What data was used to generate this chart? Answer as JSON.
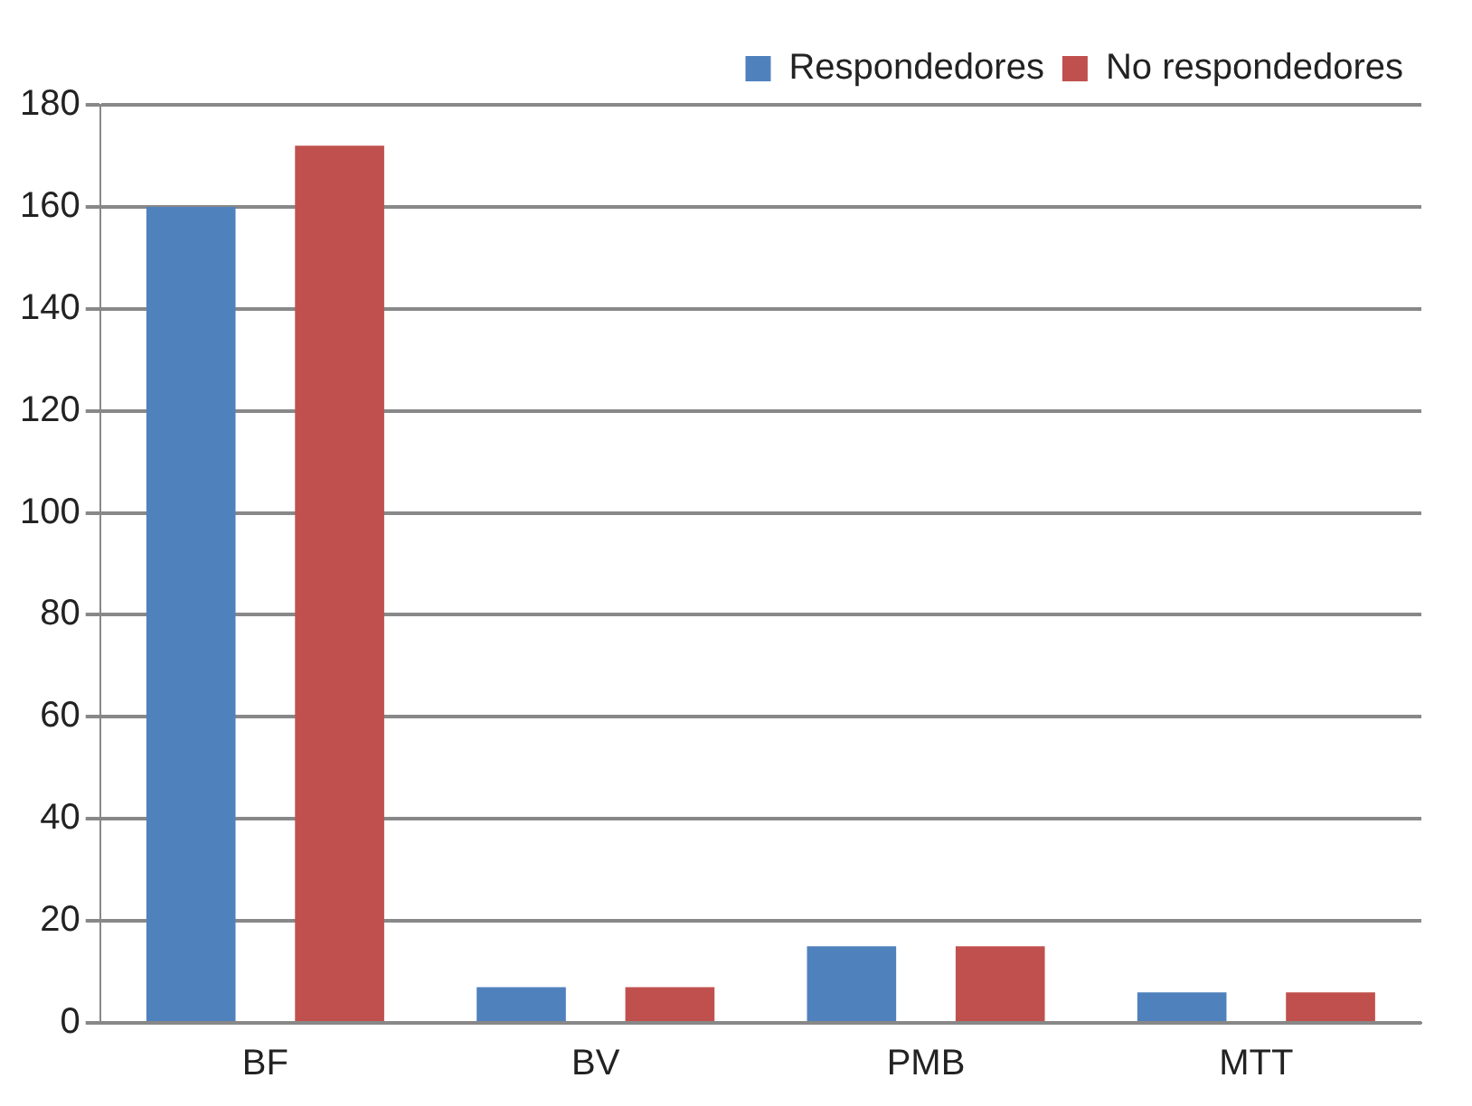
{
  "chart_data": {
    "type": "bar",
    "categories": [
      "BF",
      "BV",
      "PMB",
      "MTT"
    ],
    "series": [
      {
        "name": "Respondedores",
        "color": "#4f81bd",
        "values": [
          160,
          7,
          15,
          6
        ]
      },
      {
        "name": "No respondedores",
        "color": "#c0504d",
        "values": [
          172,
          7,
          15,
          6
        ]
      }
    ],
    "ylim": [
      0,
      180
    ],
    "yticks": [
      0,
      20,
      40,
      60,
      80,
      100,
      120,
      140,
      160,
      180
    ],
    "grid": "y",
    "legend": "top right"
  }
}
